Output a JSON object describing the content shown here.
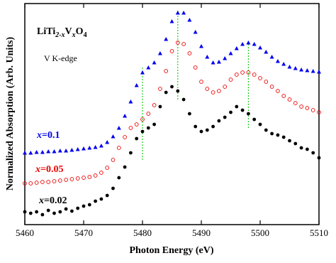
{
  "chart_data": {
    "type": "scatter",
    "xlabel": "Photon Energy (eV)",
    "ylabel": "Normalized Absorption  (Arb. Units)",
    "formula": [
      "LiTi",
      "2-x",
      "V",
      "x",
      "O",
      "4"
    ],
    "edge_label": "V K-edge",
    "xlim": [
      5460,
      5510
    ],
    "xticks": [
      5460,
      5470,
      5480,
      5490,
      5500,
      5510
    ],
    "ylim": [
      0,
      311
    ],
    "x": [
      5460,
      5461,
      5462,
      5463,
      5464,
      5465,
      5466,
      5467,
      5468,
      5469,
      5470,
      5471,
      5472,
      5473,
      5474,
      5475,
      5476,
      5477,
      5478,
      5479,
      5480,
      5481,
      5482,
      5483,
      5484,
      5485,
      5486,
      5487,
      5488,
      5489,
      5490,
      5491,
      5492,
      5493,
      5494,
      5495,
      5496,
      5497,
      5498,
      5499,
      5500,
      5501,
      5502,
      5503,
      5504,
      5505,
      5506,
      5507,
      5508,
      5509,
      5510
    ],
    "series": [
      {
        "name": "x=0.1",
        "color": "#0000ee",
        "marker": "triangle",
        "values": [
          101,
          101,
          102,
          102,
          103,
          103,
          104,
          104,
          105,
          106,
          107,
          108,
          109,
          111,
          116,
          124,
          136,
          153,
          173,
          196,
          214,
          221,
          228,
          241,
          261,
          286,
          298,
          298,
          288,
          271,
          251,
          236,
          228,
          229,
          234,
          241,
          248,
          254,
          256,
          254,
          249,
          243,
          236,
          230,
          226,
          222,
          220,
          218,
          217,
          216,
          215
        ]
      },
      {
        "name": "x=0.05",
        "color": "#ee0000",
        "marker": "circle-open",
        "values": [
          58,
          58,
          59,
          60,
          60,
          61,
          62,
          63,
          64,
          65,
          66,
          67,
          69,
          73,
          80,
          91,
          108,
          123,
          136,
          141,
          148,
          156,
          168,
          191,
          216,
          244,
          256,
          254,
          241,
          221,
          201,
          191,
          186,
          188,
          194,
          204,
          211,
          214,
          214,
          211,
          206,
          201,
          194,
          188,
          181,
          176,
          171,
          166,
          164,
          161,
          158
        ]
      },
      {
        "name": "x=0.02",
        "color": "#000000",
        "marker": "circle",
        "values": [
          18,
          16,
          18,
          14,
          20,
          16,
          18,
          22,
          19,
          23,
          26,
          28,
          33,
          36,
          41,
          51,
          66,
          81,
          101,
          121,
          131,
          136,
          141,
          166,
          186,
          194,
          188,
          176,
          156,
          138,
          131,
          133,
          138,
          146,
          151,
          158,
          166,
          161,
          156,
          148,
          141,
          133,
          128,
          126,
          123,
          118,
          114,
          108,
          106,
          101,
          94
        ]
      }
    ],
    "vlines": {
      "color": "#22cc22",
      "x": [
        5480,
        5486,
        5498
      ],
      "ymin": [
        91,
        176,
        136
      ],
      "ymax": [
        221,
        301,
        256
      ]
    }
  }
}
